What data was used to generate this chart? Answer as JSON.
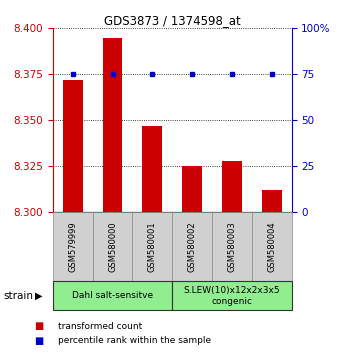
{
  "title": "GDS3873 / 1374598_at",
  "samples": [
    "GSM579999",
    "GSM580000",
    "GSM580001",
    "GSM580002",
    "GSM580003",
    "GSM580004"
  ],
  "red_values": [
    8.372,
    8.395,
    8.347,
    8.325,
    8.328,
    8.312
  ],
  "blue_values": [
    75,
    75,
    75,
    75,
    75,
    75
  ],
  "ylim_left": [
    8.3,
    8.4
  ],
  "ylim_right": [
    0,
    100
  ],
  "yticks_left": [
    8.3,
    8.325,
    8.35,
    8.375,
    8.4
  ],
  "yticks_right": [
    0,
    25,
    50,
    75,
    100
  ],
  "groups": [
    {
      "label": "Dahl salt-sensitve",
      "span": [
        0,
        2
      ],
      "color": "#90EE90"
    },
    {
      "label": "S.LEW(10)x12x2x3x5\ncongenic",
      "span": [
        3,
        5
      ],
      "color": "#90EE90"
    }
  ],
  "bar_color": "#cc0000",
  "dot_color": "#0000cc",
  "base_value": 8.3,
  "legend_red": "transformed count",
  "legend_blue": "percentile rank within the sample",
  "xlabel_strain": "strain",
  "tick_color_left": "#cc0000",
  "tick_color_right": "#0000cc",
  "sample_box_color": "#d0d0d0",
  "fig_width": 3.41,
  "fig_height": 3.54
}
